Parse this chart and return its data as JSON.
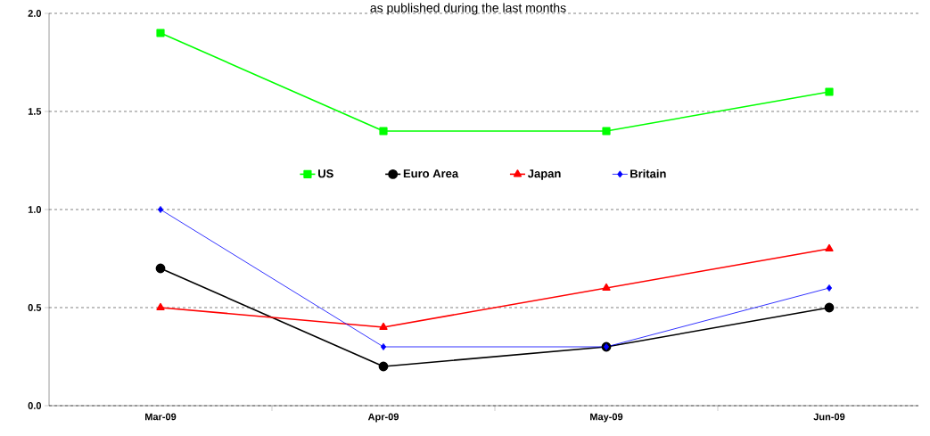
{
  "chart_data": {
    "type": "line",
    "subtitle": "as published during the last months",
    "categories": [
      "Mar-09",
      "Apr-09",
      "May-09",
      "Jun-09"
    ],
    "series": [
      {
        "name": "US",
        "color": "#00ff00",
        "marker": "square",
        "values": [
          1.9,
          1.4,
          1.4,
          1.6
        ]
      },
      {
        "name": "Euro Area",
        "color": "#000000",
        "marker": "circle",
        "values": [
          0.7,
          0.2,
          0.3,
          0.5
        ]
      },
      {
        "name": "Japan",
        "color": "#ff0000",
        "marker": "triangle",
        "values": [
          0.5,
          0.4,
          0.6,
          0.8
        ]
      },
      {
        "name": "Britain",
        "color": "#0000ff",
        "marker": "diamond",
        "values": [
          1.0,
          0.3,
          0.3,
          0.6
        ]
      }
    ],
    "ylim": [
      0,
      2
    ],
    "yticks": [
      {
        "value": 0,
        "label": "0.0"
      },
      {
        "value": 0.5,
        "label": "0.5"
      },
      {
        "value": 1,
        "label": "1.0"
      },
      {
        "value": 1.5,
        "label": "1.5"
      },
      {
        "value": 2,
        "label": "2.0"
      }
    ],
    "grid": "y",
    "legend": "center"
  }
}
